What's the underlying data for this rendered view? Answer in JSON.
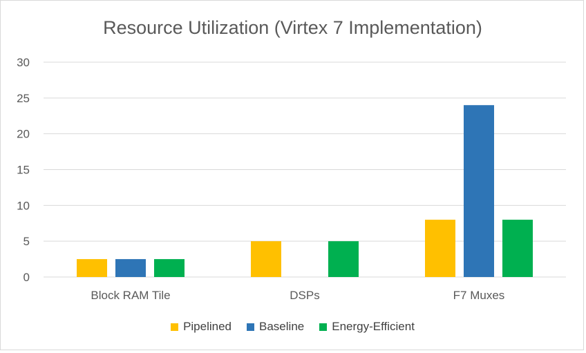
{
  "chart_data": {
    "type": "bar",
    "title": "Resource Utilization (Virtex 7 Implementation)",
    "categories": [
      "Block RAM Tile",
      "DSPs",
      "F7 Muxes"
    ],
    "series": [
      {
        "name": "Pipelined",
        "color": "#ffc000",
        "values": [
          2.5,
          5,
          8
        ]
      },
      {
        "name": "Baseline",
        "color": "#2e75b6",
        "values": [
          2.5,
          0,
          24
        ]
      },
      {
        "name": "Energy-Efficient",
        "color": "#00b050",
        "values": [
          2.5,
          5,
          8
        ]
      }
    ],
    "ylim": [
      0,
      30
    ],
    "yticks": [
      "0",
      "5",
      "10",
      "15",
      "20",
      "25",
      "30"
    ],
    "xlabel": "",
    "ylabel": "",
    "grid": true,
    "legend_position": "bottom"
  }
}
